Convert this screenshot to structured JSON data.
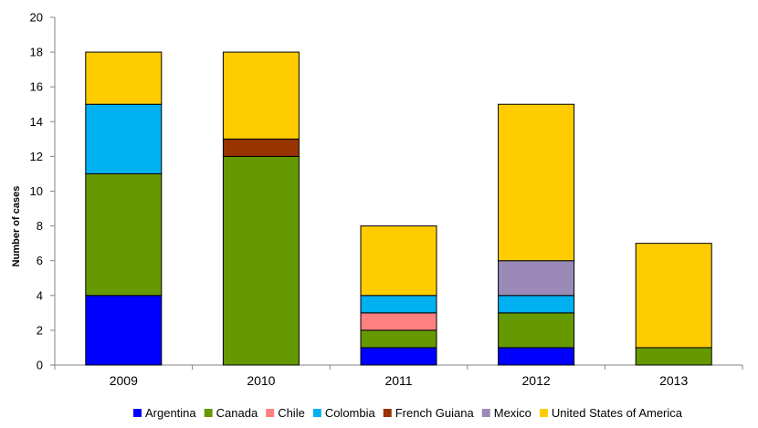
{
  "chart_data": {
    "type": "bar",
    "stacked": true,
    "categories": [
      "2009",
      "2010",
      "2011",
      "2012",
      "2013"
    ],
    "series": [
      {
        "name": "Argentina",
        "color": "#0000ff",
        "values": [
          4,
          0,
          1,
          1,
          0
        ]
      },
      {
        "name": "Canada",
        "color": "#669900",
        "values": [
          7,
          12,
          1,
          2,
          1
        ]
      },
      {
        "name": "Chile",
        "color": "#ff8080",
        "values": [
          0,
          0,
          1,
          0,
          0
        ]
      },
      {
        "name": "Colombia",
        "color": "#00b0f0",
        "values": [
          4,
          0,
          1,
          1,
          0
        ]
      },
      {
        "name": "French Guiana",
        "color": "#993300",
        "values": [
          0,
          1,
          0,
          0,
          0
        ]
      },
      {
        "name": "Mexico",
        "color": "#9b8ab8",
        "values": [
          0,
          0,
          0,
          2,
          0
        ]
      },
      {
        "name": "United States of America",
        "color": "#ffcc00",
        "values": [
          3,
          5,
          4,
          9,
          6
        ]
      }
    ],
    "title": "",
    "xlabel": "",
    "ylabel": "Number of cases",
    "ylim": [
      0,
      20
    ],
    "yticks": [
      0,
      2,
      4,
      6,
      8,
      10,
      12,
      14,
      16,
      18,
      20
    ],
    "grid": false,
    "legend_position": "bottom"
  }
}
